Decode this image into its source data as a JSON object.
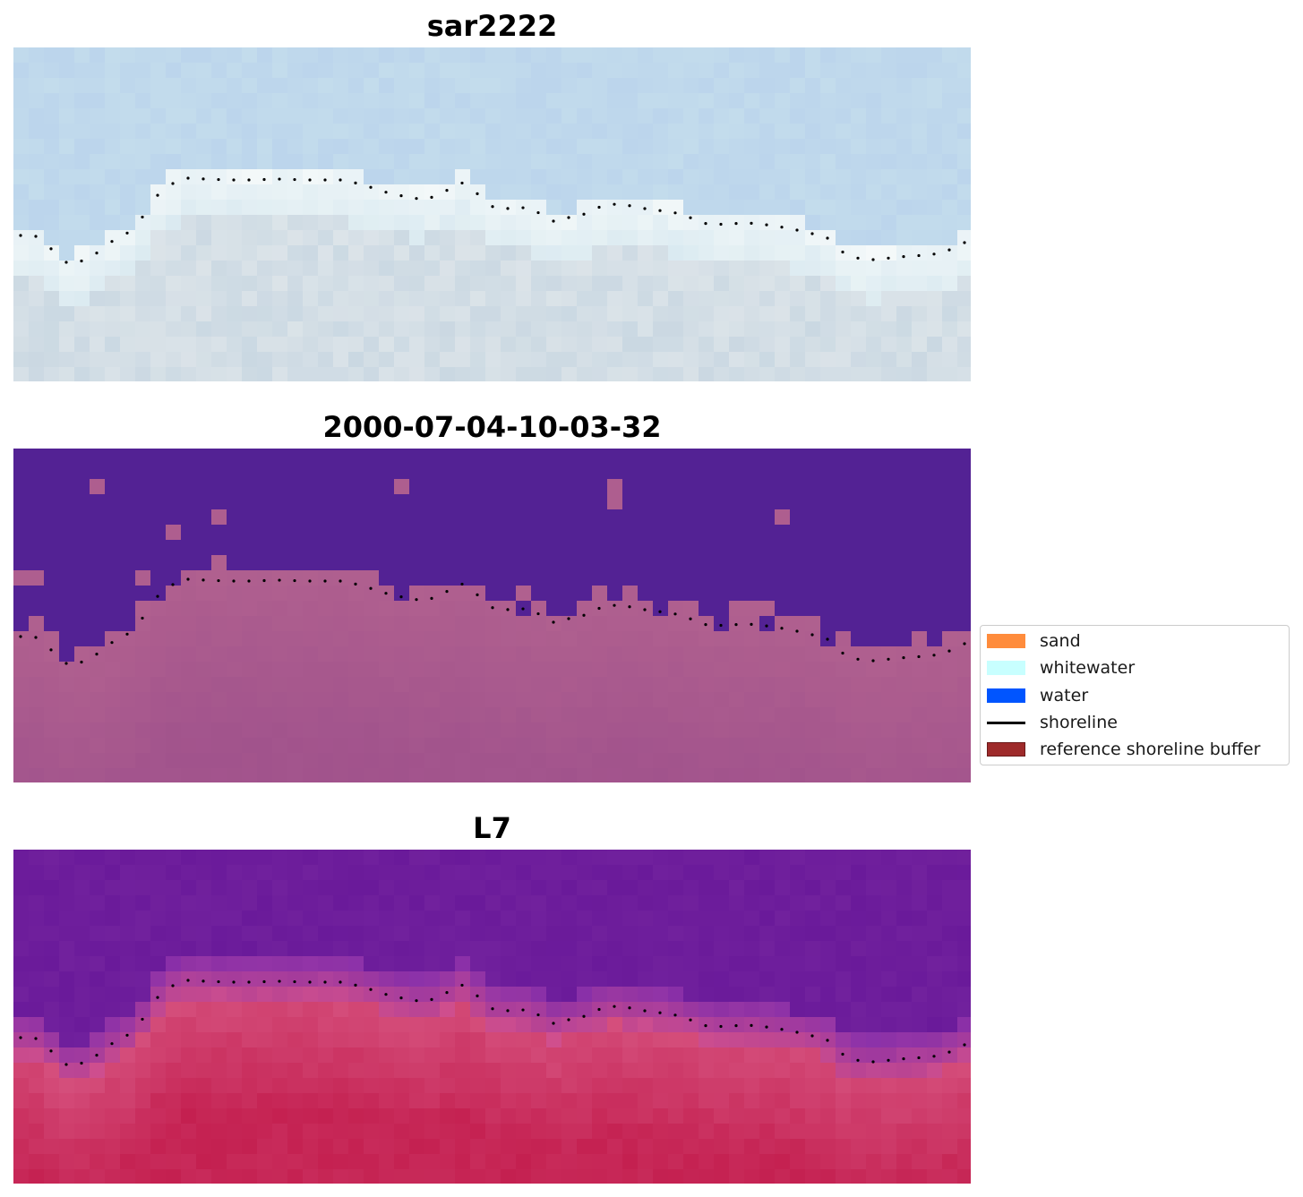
{
  "panels": [
    {
      "title": "sar2222"
    },
    {
      "title": "2000-07-04-10-03-32"
    },
    {
      "title": "L7"
    }
  ],
  "legend": {
    "items": [
      {
        "label": "sand",
        "kind": "patch",
        "color": "#ff8c3c"
      },
      {
        "label": "whitewater",
        "kind": "patch",
        "color": "#c8ffff"
      },
      {
        "label": "water",
        "kind": "patch",
        "color": "#0055ff"
      },
      {
        "label": "shoreline",
        "kind": "line",
        "color": "#000000"
      },
      {
        "label": "reference shoreline buffer",
        "kind": "patch",
        "color": "#9e2a2a"
      }
    ]
  },
  "colors": {
    "panel1_sky": "#c3dcec",
    "panel1_beach": "#dfe6ea",
    "panel2_water": "#532294",
    "panel2_land": "#b0608f",
    "panel3_water": "#6a1a9a",
    "panel3_land": "#c42050"
  }
}
